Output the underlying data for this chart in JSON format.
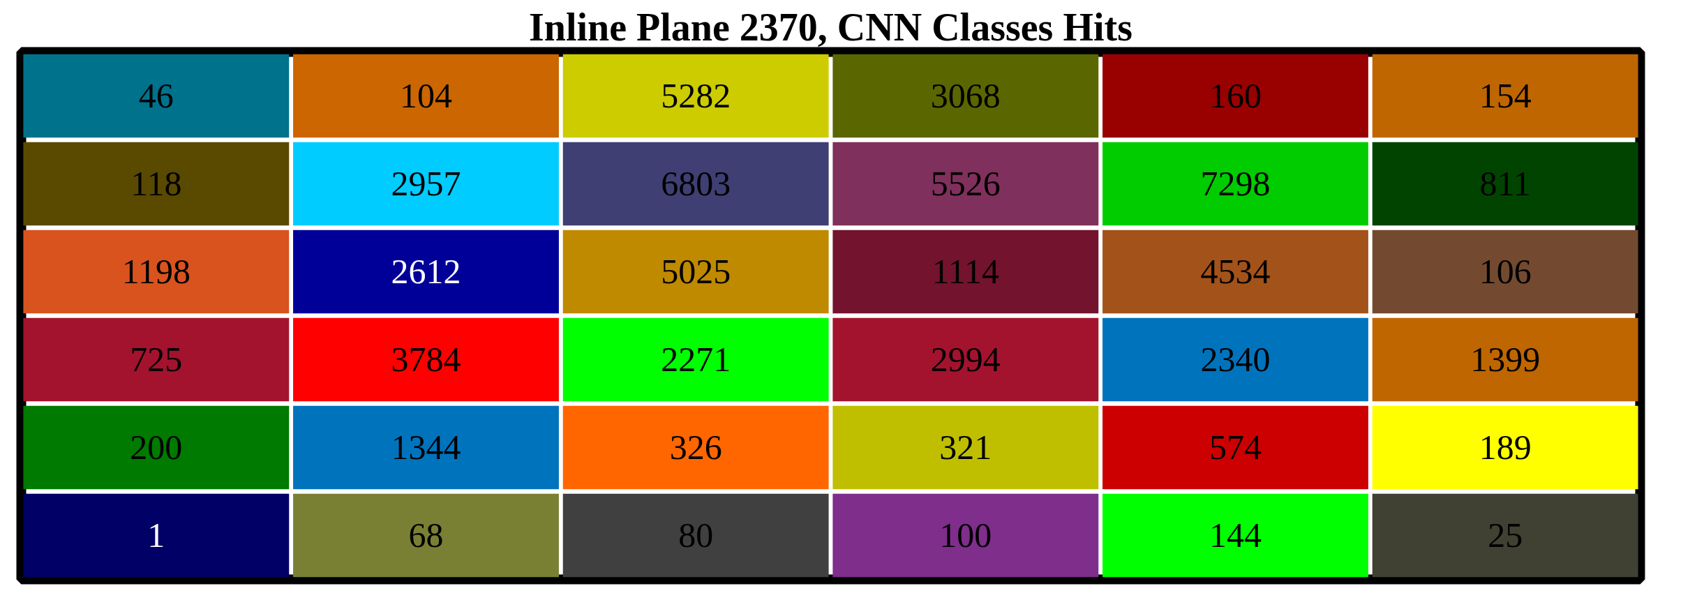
{
  "chart_data": {
    "type": "heatmap",
    "title": "Inline Plane 2370, CNN Classes Hits",
    "categories": [
      null,
      null,
      null,
      null,
      null,
      null
    ],
    "y_categories": [
      null,
      null,
      null,
      null,
      null,
      null
    ],
    "cells": [
      [
        46,
        104,
        5282,
        3068,
        160,
        154
      ],
      [
        118,
        2957,
        6803,
        5526,
        7298,
        811
      ],
      [
        1198,
        2612,
        5025,
        1114,
        4534,
        106
      ],
      [
        725,
        3784,
        2271,
        2994,
        2340,
        1399
      ],
      [
        200,
        1344,
        326,
        321,
        574,
        189
      ],
      [
        1,
        68,
        80,
        100,
        144,
        25
      ]
    ],
    "colors": [
      [
        "#00728c",
        "#cc6600",
        "#cccc00",
        "#5a6600",
        "#990000",
        "#bf6600"
      ],
      [
        "#5a4a00",
        "#00ccff",
        "#3f3f73",
        "#80305c",
        "#00cc00",
        "#004400"
      ],
      [
        "#d9531e",
        "#000099",
        "#bf8a00",
        "#73132e",
        "#a3521a",
        "#734a30"
      ],
      [
        "#a3132e",
        "#ff0000",
        "#00ff00",
        "#a3132e",
        "#0073bd",
        "#bf6600"
      ],
      [
        "#007a00",
        "#0073bd",
        "#ff6600",
        "#bfbf00",
        "#cc0000",
        "#ffff00"
      ],
      [
        "#000066",
        "#7a8033",
        "#404040",
        "#7f2e8c",
        "#00ff00",
        "#404033"
      ]
    ],
    "data_labels": true
  }
}
